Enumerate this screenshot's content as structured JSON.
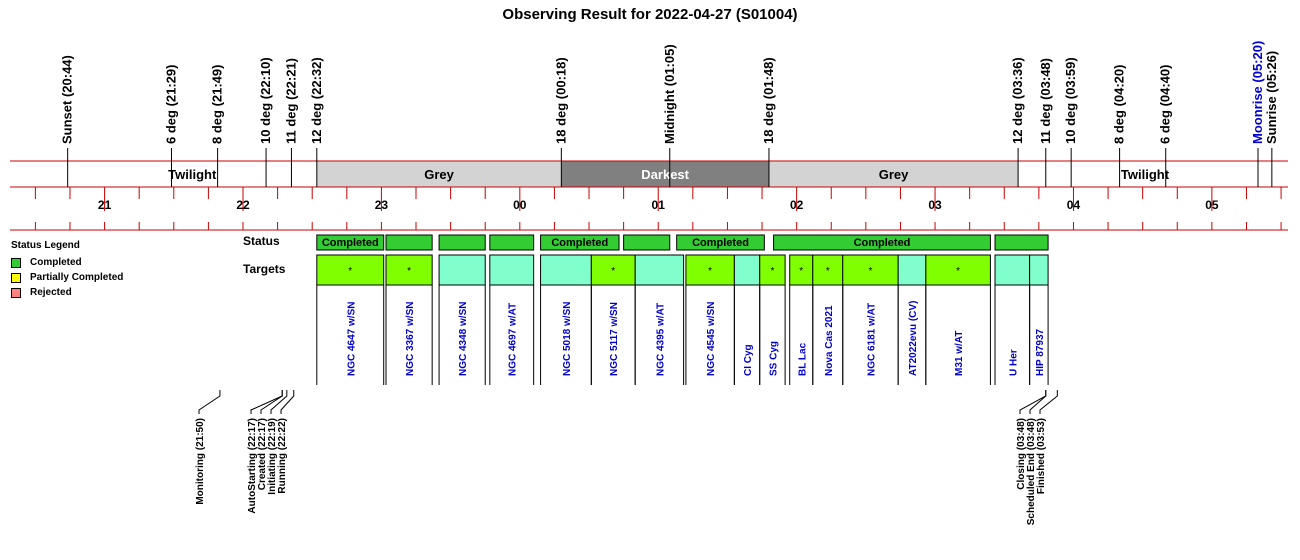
{
  "chart_data": {
    "type": "timeline",
    "title": "Observing Result for 2022-04-27 (S01004)",
    "time_range": [
      "20:19",
      "05:33"
    ],
    "tick_hours": [
      "21",
      "22",
      "23",
      "00",
      "01",
      "02",
      "03",
      "04",
      "05"
    ],
    "top_events": [
      {
        "label": "Sunset (20:44)",
        "time": "20:44",
        "color": "#000000"
      },
      {
        "label": "6 deg (21:29)",
        "time": "21:29",
        "color": "#000000"
      },
      {
        "label": "8 deg (21:49)",
        "time": "21:49",
        "color": "#000000"
      },
      {
        "label": "10 deg (22:10)",
        "time": "22:10",
        "color": "#000000"
      },
      {
        "label": "11 deg (22:21)",
        "time": "22:21",
        "color": "#000000"
      },
      {
        "label": "12 deg (22:32)",
        "time": "22:32",
        "color": "#000000"
      },
      {
        "label": "18 deg (00:18)",
        "time": "00:18",
        "color": "#000000"
      },
      {
        "label": "Midnight (01:05)",
        "time": "01:05",
        "color": "#000000"
      },
      {
        "label": "18 deg (01:48)",
        "time": "01:48",
        "color": "#000000"
      },
      {
        "label": "12 deg (03:36)",
        "time": "03:36",
        "color": "#000000"
      },
      {
        "label": "11 deg (03:48)",
        "time": "03:48",
        "color": "#000000"
      },
      {
        "label": "10 deg (03:59)",
        "time": "03:59",
        "color": "#000000"
      },
      {
        "label": "8 deg (04:20)",
        "time": "04:20",
        "color": "#000000"
      },
      {
        "label": "6 deg (04:40)",
        "time": "04:40",
        "color": "#000000"
      },
      {
        "label": "Moonrise (05:20)",
        "time": "05:20",
        "color": "#0000cc"
      },
      {
        "label": "Sunrise (05:26)",
        "time": "05:26",
        "color": "#000000"
      }
    ],
    "sky_bands": [
      {
        "label": "Twilight",
        "start": "20:44",
        "end": "22:32",
        "fill": "#ffffff",
        "text_color": "#000000"
      },
      {
        "label": "Grey",
        "start": "22:32",
        "end": "00:18",
        "fill": "#d3d3d3",
        "text_color": "#000000"
      },
      {
        "label": "Darkest",
        "start": "00:18",
        "end": "01:48",
        "fill": "#808080",
        "text_color": "#ffffff"
      },
      {
        "label": "Grey",
        "start": "01:48",
        "end": "03:36",
        "fill": "#d3d3d3",
        "text_color": "#000000"
      },
      {
        "label": "Twilight",
        "start": "03:36",
        "end": "05:26",
        "fill": "#ffffff",
        "text_color": "#000000"
      }
    ],
    "status_legend": {
      "title": "Status Legend",
      "items": [
        {
          "label": "Completed",
          "color": "#33cc33"
        },
        {
          "label": "Partially Completed",
          "color": "#ffff00"
        },
        {
          "label": "Rejected",
          "color": "#ff8080"
        }
      ]
    },
    "status_row_label": "Status",
    "targets_row_label": "Targets",
    "status_blocks": [
      {
        "label": "Completed",
        "start": "22:32",
        "end": "23:01"
      },
      {
        "label": "",
        "start": "23:02",
        "end": "23:22"
      },
      {
        "label": "",
        "start": "23:25",
        "end": "23:45"
      },
      {
        "label": "",
        "start": "23:47",
        "end": "00:06"
      },
      {
        "label": "Completed",
        "start": "00:09",
        "end": "00:43"
      },
      {
        "label": "",
        "start": "00:45",
        "end": "01:05"
      },
      {
        "label": "Completed",
        "start": "01:08",
        "end": "01:46"
      },
      {
        "label": "Completed",
        "start": "01:50",
        "end": "03:24"
      },
      {
        "label": "",
        "start": "03:26",
        "end": "03:49"
      }
    ],
    "targets": [
      {
        "name": "NGC 4647 w/SN",
        "start": "22:32",
        "end": "23:01",
        "marked": true
      },
      {
        "name": "NGC 3367 w/SN",
        "start": "23:02",
        "end": "23:22",
        "marked": true
      },
      {
        "name": "NGC 4348 w/SN",
        "start": "23:25",
        "end": "23:45",
        "marked": false
      },
      {
        "name": "NGC 4697 w/AT",
        "start": "23:47",
        "end": "00:06",
        "marked": false
      },
      {
        "name": "NGC 5018 w/SN",
        "start": "00:09",
        "end": "00:31",
        "marked": false
      },
      {
        "name": "NGC 5117 w/SN",
        "start": "00:31",
        "end": "00:50",
        "marked": true
      },
      {
        "name": "NGC 4395 w/AT",
        "start": "00:50",
        "end": "01:11",
        "marked": false
      },
      {
        "name": "NGC 4545 w/SN",
        "start": "01:12",
        "end": "01:33",
        "marked": true
      },
      {
        "name": "CI Cyg",
        "start": "01:33",
        "end": "01:44",
        "marked": false
      },
      {
        "name": "SS Cyg",
        "start": "01:44",
        "end": "01:55",
        "marked": true
      },
      {
        "name": "BL Lac",
        "start": "01:57",
        "end": "02:07",
        "marked": true
      },
      {
        "name": "Nova Cas 2021",
        "start": "02:07",
        "end": "02:20",
        "marked": true
      },
      {
        "name": "NGC 6181 w/AT",
        "start": "02:20",
        "end": "02:44",
        "marked": true
      },
      {
        "name": "AT2022evu (CV)",
        "start": "02:44",
        "end": "02:56",
        "marked": false
      },
      {
        "name": "M31 w/AT",
        "start": "02:56",
        "end": "03:24",
        "marked": true
      },
      {
        "name": "U Her",
        "start": "03:26",
        "end": "03:41",
        "marked": false
      },
      {
        "name": "HIP 87937",
        "start": "03:41",
        "end": "03:49",
        "marked": false
      }
    ],
    "target_marker": "*",
    "bottom_events": [
      {
        "label": "Monitoring (21:50)",
        "time": "21:50"
      },
      {
        "label": "AutoStarting (22:17)",
        "time": "22:17"
      },
      {
        "label": "Created (22:17)",
        "time": "22:17"
      },
      {
        "label": "Initiating (22:19)",
        "time": "22:19"
      },
      {
        "label": "Running (22:22)",
        "time": "22:22"
      },
      {
        "label": "Closing (03:48)",
        "time": "03:48"
      },
      {
        "label": "Scheduled End (03:48)",
        "time": "03:48"
      },
      {
        "label": "Finished (03:53)",
        "time": "03:53"
      }
    ],
    "colors": {
      "axis_line": "#cc0000",
      "status_fill": "#33cc33",
      "target_marked": "#80ff00",
      "target_plain": "#80ffcc",
      "target_text": "#0000cc"
    }
  }
}
